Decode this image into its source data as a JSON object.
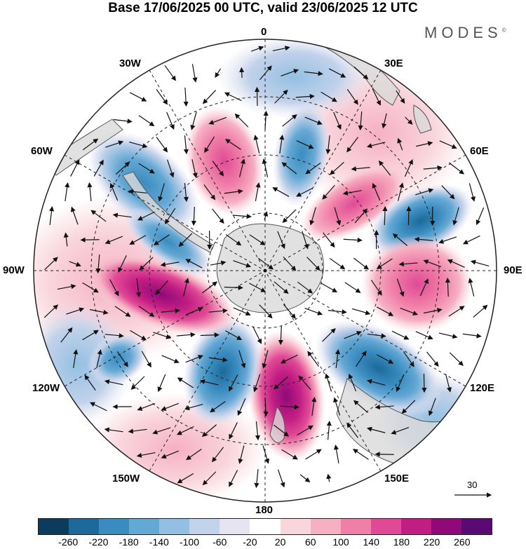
{
  "title": "Base 17/06/2025 00 UTC, valid 23/06/2025 12 UTC",
  "brand": "MODES",
  "brand_mark": "©",
  "longitude_labels": {
    "n0": "0",
    "n30e": "30E",
    "n60e": "60E",
    "n90e": "90E",
    "n120e": "120E",
    "n150e": "150E",
    "n180": "180",
    "n150w": "150W",
    "n120w": "120W",
    "n90w": "90W",
    "n60w": "60W",
    "n30w": "30W"
  },
  "reference_vector_label": "30",
  "colorbar": {
    "colors": [
      "#0d3b5e",
      "#1d6a9a",
      "#3a8cc0",
      "#64a8d4",
      "#93c0e2",
      "#c2d2ea",
      "#e6e4f1",
      "#ffffff",
      "#f9d5dc",
      "#f6b0c4",
      "#f07fa8",
      "#e04a95",
      "#c21d83",
      "#8f0a78",
      "#5a0b73"
    ],
    "ticks": [
      "-260",
      "-220",
      "-180",
      "-140",
      "-100",
      "-60",
      "-20",
      "20",
      "60",
      "100",
      "140",
      "180",
      "220",
      "260"
    ]
  },
  "map_style": {
    "land_color": "#d9d9d9",
    "coast_color": "#555555",
    "grid_color": "#222222"
  }
}
